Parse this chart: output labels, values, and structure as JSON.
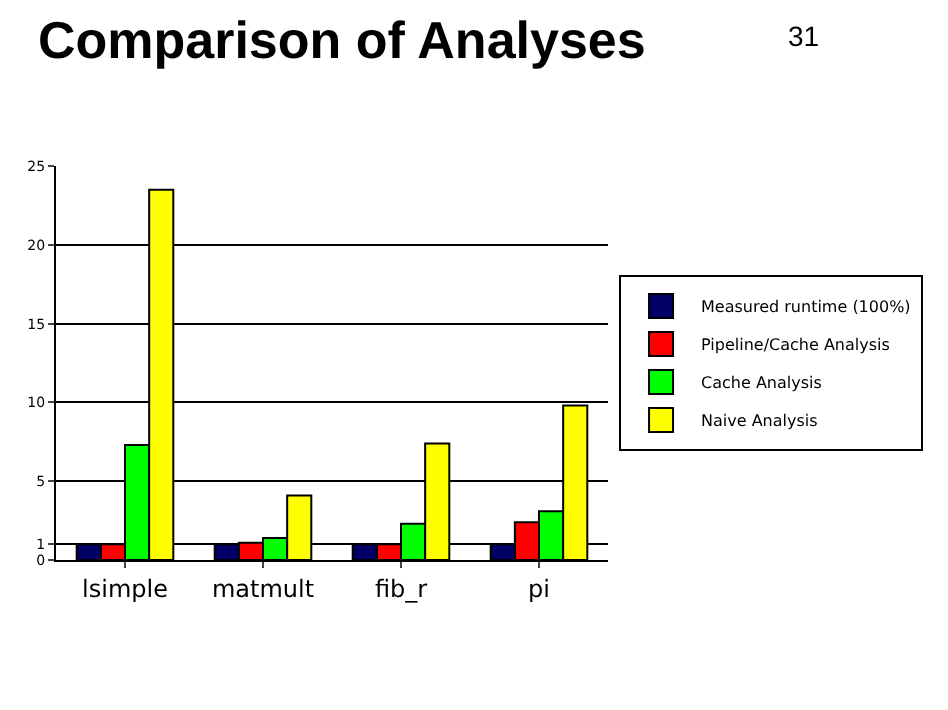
{
  "chart_data": {
    "type": "bar",
    "title": "Comparison of Analyses",
    "annotations": [
      "31"
    ],
    "categories": [
      "lsimple",
      "matmult",
      "fib_r",
      "pi"
    ],
    "series": [
      {
        "name": "Measured runtime (100%)",
        "color": "#000066",
        "values": [
          1,
          1,
          1,
          1
        ]
      },
      {
        "name": "Pipeline/Cache Analysis",
        "color": "#ff0000",
        "values": [
          1,
          1.1,
          1,
          2.4
        ]
      },
      {
        "name": "Cache Analysis",
        "color": "#00ff00",
        "values": [
          7.3,
          1.4,
          2.3,
          3.1
        ]
      },
      {
        "name": "Naive Analysis",
        "color": "#ffff00",
        "values": [
          23.5,
          4.1,
          7.4,
          9.8
        ]
      }
    ],
    "ylim": [
      0,
      25
    ],
    "yticks": [
      0,
      1,
      5,
      10,
      15,
      20,
      25
    ],
    "grid": "y",
    "legend": "right"
  }
}
